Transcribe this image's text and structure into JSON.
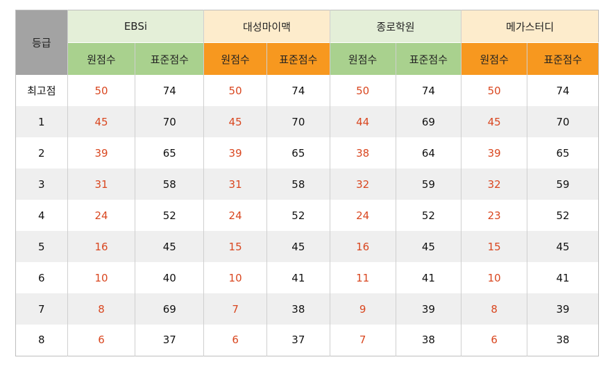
{
  "table": {
    "grade_header": "등급",
    "sources": [
      {
        "name": "EBSi",
        "theme": "green"
      },
      {
        "name": "대성마이맥",
        "theme": "orange"
      },
      {
        "name": "종로학원",
        "theme": "green"
      },
      {
        "name": "메가스터디",
        "theme": "orange"
      }
    ],
    "sub_headers": [
      "원점수",
      "표준점수"
    ],
    "colors": {
      "raw_score": "#d9461f",
      "header_green": "#a9d18e",
      "header_orange": "#f7981f"
    },
    "rows": [
      {
        "grade": "최고점",
        "scores": [
          "50",
          "74",
          "50",
          "74",
          "50",
          "74",
          "50",
          "74"
        ]
      },
      {
        "grade": "1",
        "scores": [
          "45",
          "70",
          "45",
          "70",
          "44",
          "69",
          "45",
          "70"
        ]
      },
      {
        "grade": "2",
        "scores": [
          "39",
          "65",
          "39",
          "65",
          "38",
          "64",
          "39",
          "65"
        ]
      },
      {
        "grade": "3",
        "scores": [
          "31",
          "58",
          "31",
          "58",
          "32",
          "59",
          "32",
          "59"
        ]
      },
      {
        "grade": "4",
        "scores": [
          "24",
          "52",
          "24",
          "52",
          "24",
          "52",
          "23",
          "52"
        ]
      },
      {
        "grade": "5",
        "scores": [
          "16",
          "45",
          "15",
          "45",
          "16",
          "45",
          "15",
          "45"
        ]
      },
      {
        "grade": "6",
        "scores": [
          "10",
          "40",
          "10",
          "41",
          "11",
          "41",
          "10",
          "41"
        ]
      },
      {
        "grade": "7",
        "scores": [
          "8",
          "69",
          "7",
          "38",
          "9",
          "39",
          "8",
          "39"
        ]
      },
      {
        "grade": "8",
        "scores": [
          "6",
          "37",
          "6",
          "37",
          "7",
          "38",
          "6",
          "38"
        ]
      }
    ]
  }
}
